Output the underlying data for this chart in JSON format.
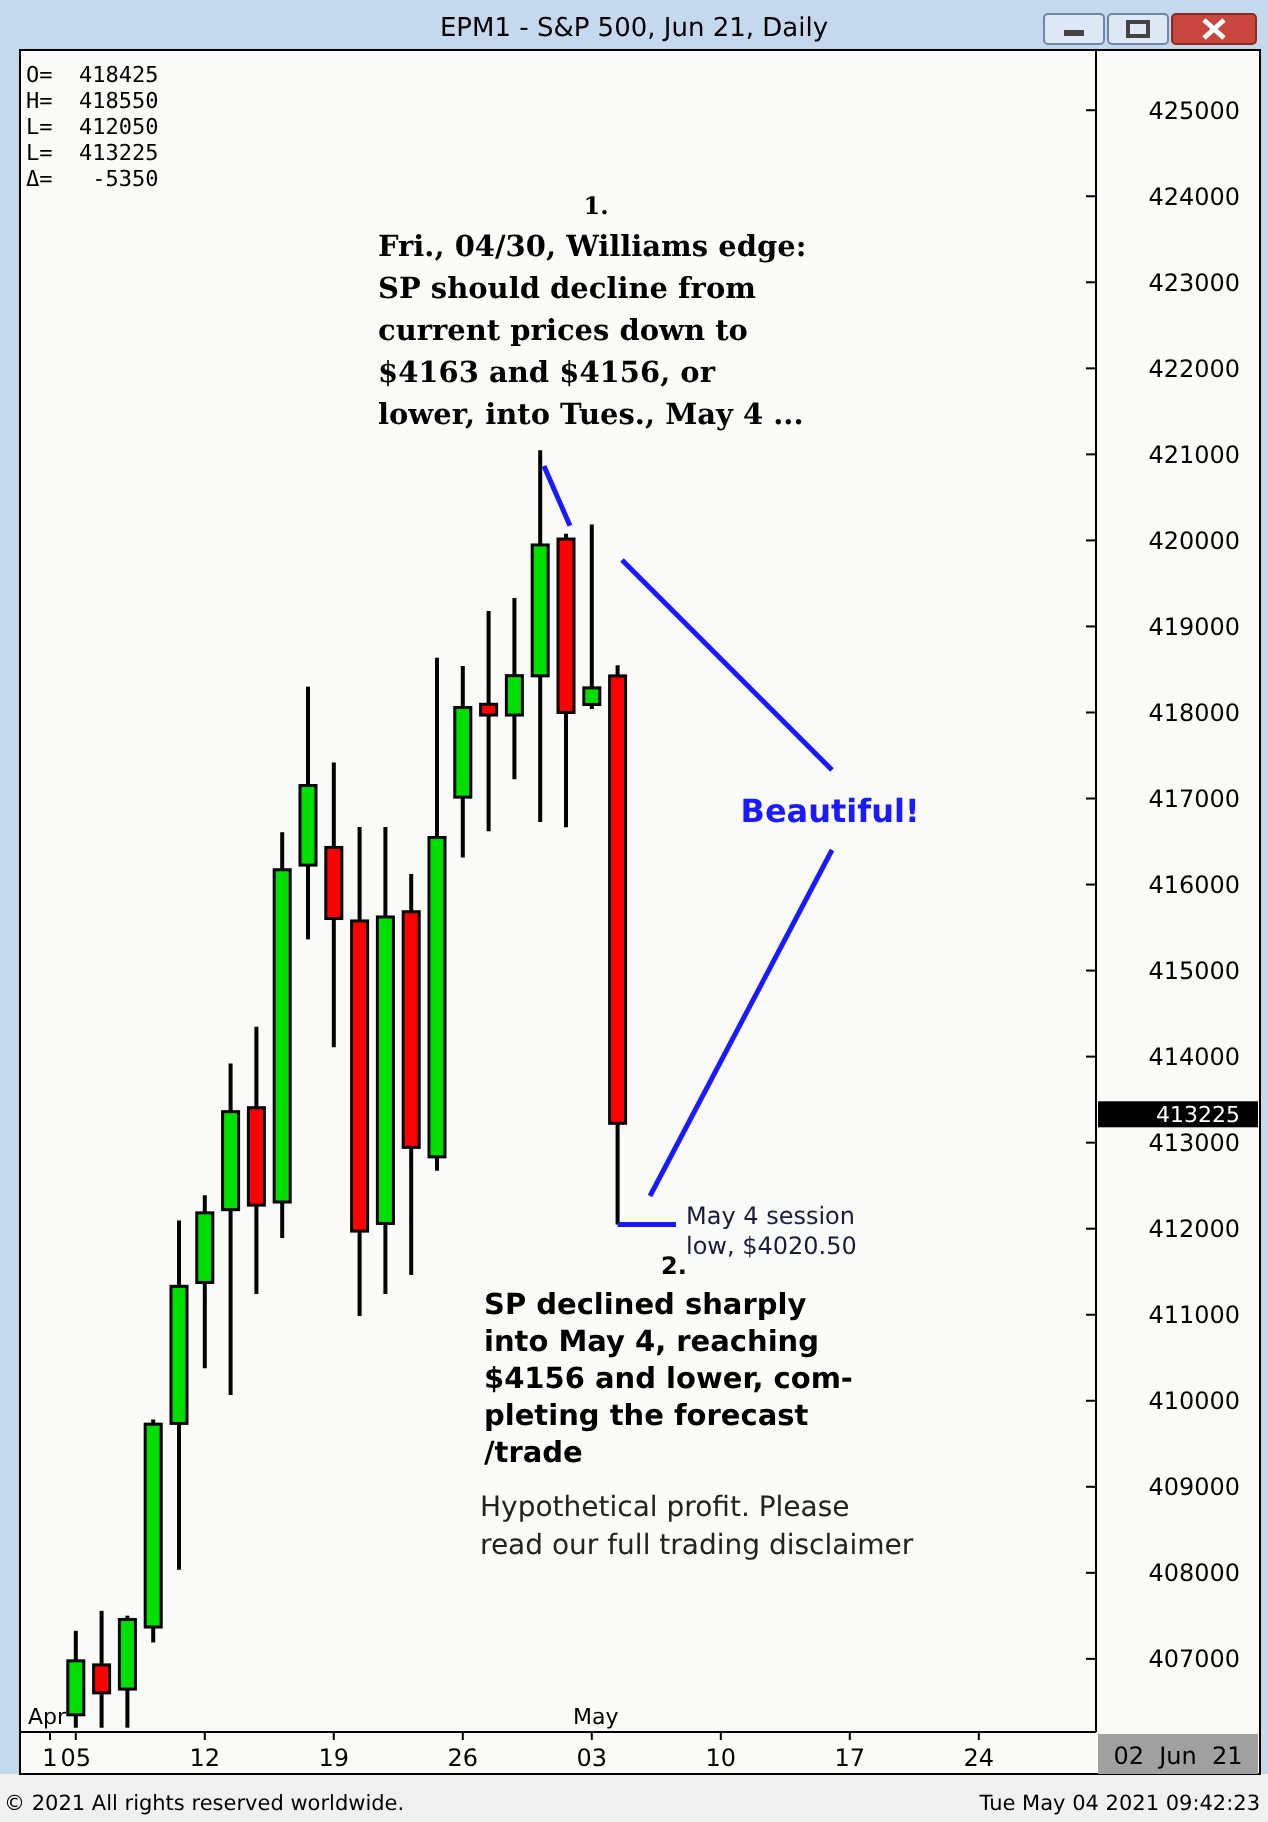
{
  "chart_data": {
    "type": "candlestick",
    "title": "EPM1 - S&P 500, Jun 21, Daily",
    "categories": [
      "1",
      "05",
      null,
      null,
      null,
      null,
      "12",
      null,
      null,
      null,
      null,
      "19",
      null,
      null,
      null,
      null,
      "26",
      null,
      null,
      null,
      null,
      "03",
      null,
      null,
      null,
      null,
      "10",
      null,
      null,
      null,
      null,
      "17",
      null,
      null,
      null,
      null,
      "24",
      null,
      null,
      null,
      null
    ],
    "ohlc": [
      null,
      [
        406350,
        407326,
        406200,
        406977
      ],
      [
        406930,
        407558,
        406200,
        406605
      ],
      [
        406649,
        407502,
        406200,
        407458
      ],
      [
        407370,
        409781,
        407190,
        409728
      ],
      [
        409737,
        412095,
        408037,
        411330
      ],
      [
        411375,
        412388,
        410379,
        412184
      ],
      [
        412221,
        413921,
        410068,
        413360
      ],
      [
        413406,
        414347,
        411242,
        412274
      ],
      [
        412310,
        416607,
        411891,
        416172
      ],
      [
        416226,
        418300,
        415363,
        417151
      ],
      [
        416431,
        417419,
        414108,
        415605
      ],
      [
        415577,
        416670,
        410984,
        411972
      ],
      [
        412061,
        416670,
        411242,
        415623
      ],
      [
        415684,
        416123,
        411461,
        412945
      ],
      [
        412835,
        418637,
        412674,
        416547
      ],
      [
        417016,
        418540,
        416314,
        418058
      ],
      [
        418095,
        419179,
        416619,
        417970
      ],
      [
        417970,
        419330,
        417223,
        418428
      ],
      [
        418426,
        421047,
        416728,
        419947
      ],
      [
        420016,
        420077,
        416667,
        418000
      ],
      [
        418093,
        420186,
        418040,
        418286
      ],
      [
        418425,
        418550,
        412050,
        413225
      ],
      null,
      null,
      null,
      null,
      null,
      null,
      null,
      null,
      null,
      null,
      null,
      null,
      null,
      null,
      null,
      null,
      null,
      null
    ],
    "colors": [
      null,
      "#00e000",
      "#ff0000",
      "#00e000",
      "#00e000",
      "#00e000",
      "#00e000",
      "#00e000",
      "#ff0000",
      "#00e000",
      "#00e000",
      "#ff0000",
      "#ff0000",
      "#00e000",
      "#ff0000",
      "#00e000",
      "#00e000",
      "#ff0000",
      "#00e000",
      "#00e000",
      "#ff0000",
      "#00e000",
      "#ff0000",
      null,
      null,
      null,
      null,
      null,
      null,
      null,
      null,
      null,
      null,
      null,
      null,
      null,
      null,
      null,
      null,
      null,
      null
    ],
    "ylim": [
      406150,
      425700
    ],
    "yticks": [
      407000,
      408000,
      409000,
      410000,
      411000,
      412000,
      413000,
      414000,
      415000,
      416000,
      417000,
      418000,
      419000,
      420000,
      421000,
      422000,
      423000,
      424000,
      425000
    ],
    "grid": false,
    "annotations": [
      "O=  418425",
      "H=  418550",
      "L=  412050",
      "L=  413225",
      "Δ=   -5350",
      "1.",
      "Fri., 04/30, Williams edge:\nSP should decline from\ncurrent prices down to\n$4163 and $4156, or\nlower, into Tues., May 4 ...",
      "Beautiful!",
      "May 4 session\nlow, $4020.50",
      "2.",
      "SP declined sharply\ninto May 4, reaching\n$4156 and lower, com-\npleting the forecast\n/trade",
      "Hypothetical profit. Please\nread our full trading disclaimer",
      "Apr",
      "May",
      "413225",
      "02  Jun  21",
      "© 2021 All rights reserved worldwide.",
      "Tue May 04 2021 09:42:23"
    ]
  }
}
